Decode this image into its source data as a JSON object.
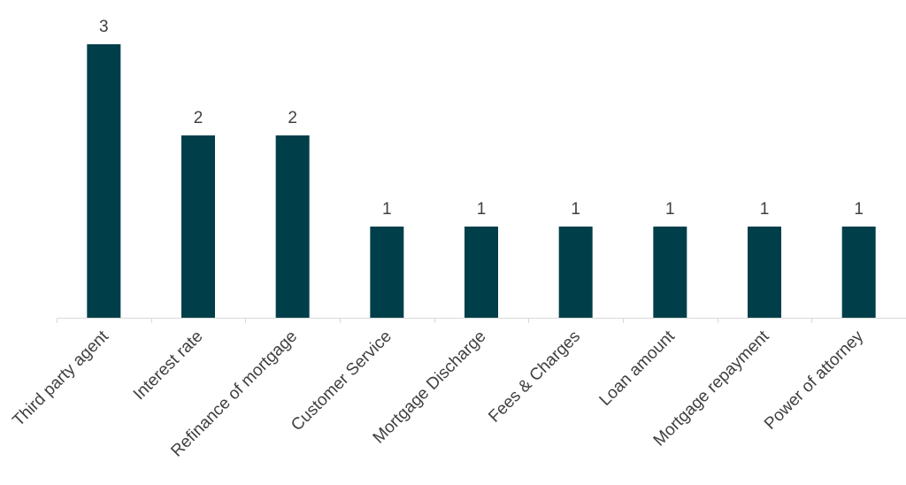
{
  "chart_data": {
    "type": "bar",
    "title": "",
    "xlabel": "",
    "ylabel": "",
    "categories": [
      "Third party agent",
      "Interest rate",
      "Refinance of mortgage",
      "Customer Service",
      "Mortgage Discharge",
      "Fees & Charges",
      "Loan amount",
      "Mortgage repayment",
      "Power of attorney"
    ],
    "values": [
      3,
      2,
      2,
      1,
      1,
      1,
      1,
      1,
      1
    ],
    "ylim": [
      0,
      3
    ],
    "grid": false,
    "legend": "none",
    "data_labels": true,
    "bar_color": "#003f4a"
  }
}
